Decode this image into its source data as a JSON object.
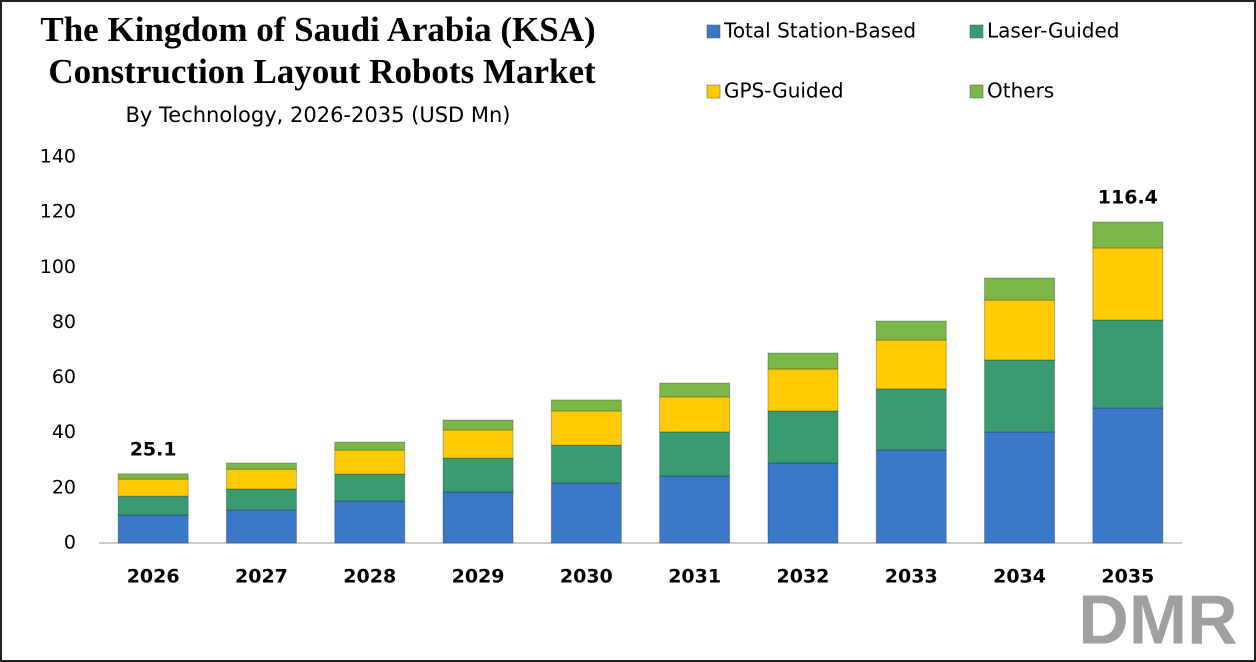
{
  "chart_data": {
    "type": "stacked_bar",
    "title": [
      "The Kingdom of Saudi Arabia (KSA)",
      "Construction Layout Robots Market"
    ],
    "subtitle": "By Technology, 2026-2035 (USD Mn)",
    "categories": [
      "2026",
      "2027",
      "2028",
      "2029",
      "2030",
      "2031",
      "2032",
      "2033",
      "2034",
      "2035"
    ],
    "series": [
      {
        "name": "Total Station-Based",
        "color": "#3b78c8",
        "values": [
          10.2,
          12.0,
          15.2,
          18.5,
          21.8,
          24.3,
          29.0,
          33.7,
          40.3,
          49.0
        ]
      },
      {
        "name": "Laser-Guided",
        "color": "#3a9a72",
        "values": [
          6.8,
          7.6,
          9.8,
          12.3,
          13.7,
          16.0,
          18.9,
          22.2,
          26.1,
          31.9
        ]
      },
      {
        "name": "GPS-Guided",
        "color": "#ffcb05",
        "values": [
          6.2,
          7.2,
          8.7,
          10.2,
          12.4,
          12.7,
          15.2,
          17.7,
          21.7,
          26.1
        ]
      },
      {
        "name": "Others",
        "color": "#7ab648",
        "values": [
          1.9,
          2.2,
          2.9,
          3.6,
          4.0,
          5.0,
          5.8,
          6.9,
          8.0,
          9.4
        ]
      }
    ],
    "total_labels": [
      25.1,
      null,
      null,
      null,
      null,
      null,
      null,
      null,
      null,
      116.4
    ],
    "ylim": [
      0,
      140
    ],
    "yticks": [
      0,
      20,
      40,
      60,
      80,
      100,
      120,
      140
    ],
    "grid": false,
    "legend": "top-right",
    "logo": "DMR"
  }
}
